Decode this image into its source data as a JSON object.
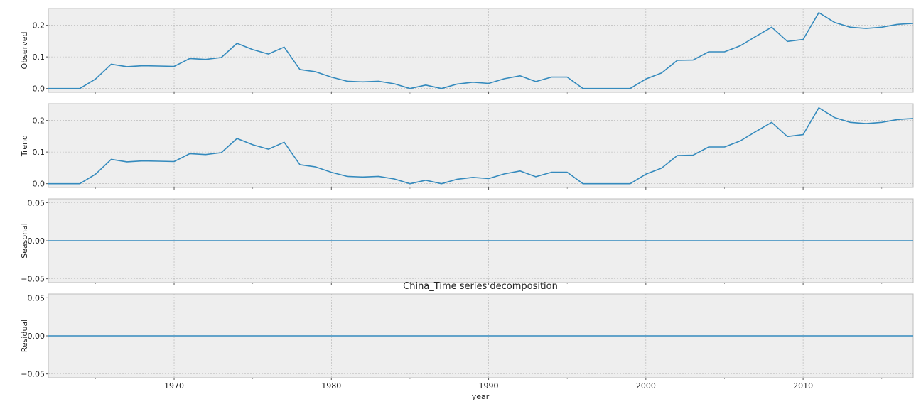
{
  "chart_data": {
    "type": "line",
    "title": "China_Time series decomposition",
    "xlabel": "year",
    "xlim": [
      1962,
      2017
    ],
    "xticks": [
      1970,
      1980,
      1990,
      2000,
      2010
    ],
    "x": [
      1962,
      1963,
      1964,
      1965,
      1966,
      1967,
      1968,
      1969,
      1970,
      1971,
      1972,
      1973,
      1974,
      1975,
      1976,
      1977,
      1978,
      1979,
      1980,
      1981,
      1982,
      1983,
      1984,
      1985,
      1986,
      1987,
      1988,
      1989,
      1990,
      1991,
      1992,
      1993,
      1994,
      1995,
      1996,
      1997,
      1998,
      1999,
      2000,
      2001,
      2002,
      2003,
      2004,
      2005,
      2006,
      2007,
      2008,
      2009,
      2010,
      2011,
      2012,
      2013,
      2014,
      2015,
      2016,
      2017
    ],
    "grid": true,
    "color": "#348ABD",
    "panels": [
      {
        "ylabel": "Observed",
        "ylim": [
          -0.012,
          0.253
        ],
        "yticks": [
          0.0,
          0.1,
          0.2
        ],
        "ytick_labels": [
          "0.0",
          "0.1",
          "0.2"
        ],
        "values": [
          0.0,
          0.0,
          0.0,
          0.03,
          0.077,
          0.069,
          0.072,
          0.071,
          0.07,
          0.095,
          0.092,
          0.098,
          0.143,
          0.123,
          0.109,
          0.131,
          0.06,
          0.053,
          0.036,
          0.023,
          0.021,
          0.023,
          0.015,
          0.0,
          0.011,
          0.0,
          0.014,
          0.02,
          0.016,
          0.031,
          0.04,
          0.022,
          0.036,
          0.036,
          0.0,
          0.0,
          0.0,
          0.0,
          0.03,
          0.049,
          0.089,
          0.09,
          0.116,
          0.116,
          0.135,
          0.165,
          0.194,
          0.149,
          0.155,
          0.24,
          0.209,
          0.194,
          0.19,
          0.194,
          0.203,
          0.206
        ]
      },
      {
        "ylabel": "Trend",
        "ylim": [
          -0.012,
          0.253
        ],
        "yticks": [
          0.0,
          0.1,
          0.2
        ],
        "ytick_labels": [
          "0.0",
          "0.1",
          "0.2"
        ],
        "values": [
          0.0,
          0.0,
          0.0,
          0.03,
          0.077,
          0.069,
          0.072,
          0.071,
          0.07,
          0.095,
          0.092,
          0.098,
          0.143,
          0.123,
          0.109,
          0.131,
          0.06,
          0.053,
          0.036,
          0.023,
          0.021,
          0.023,
          0.015,
          0.0,
          0.011,
          0.0,
          0.014,
          0.02,
          0.016,
          0.031,
          0.04,
          0.022,
          0.036,
          0.036,
          0.0,
          0.0,
          0.0,
          0.0,
          0.03,
          0.049,
          0.089,
          0.09,
          0.116,
          0.116,
          0.135,
          0.165,
          0.194,
          0.149,
          0.155,
          0.24,
          0.209,
          0.194,
          0.19,
          0.194,
          0.203,
          0.206
        ]
      },
      {
        "ylabel": "Seasonal",
        "ylim": [
          -0.055,
          0.055
        ],
        "yticks": [
          -0.05,
          0.0,
          0.05
        ],
        "ytick_labels": [
          "−0.05",
          "0.00",
          "0.05"
        ],
        "constant": 0.0
      },
      {
        "ylabel": "Residual",
        "ylim": [
          -0.055,
          0.055
        ],
        "yticks": [
          -0.05,
          0.0,
          0.05
        ],
        "ytick_labels": [
          "−0.05",
          "0.00",
          "0.05"
        ],
        "constant": 0.0
      }
    ]
  }
}
